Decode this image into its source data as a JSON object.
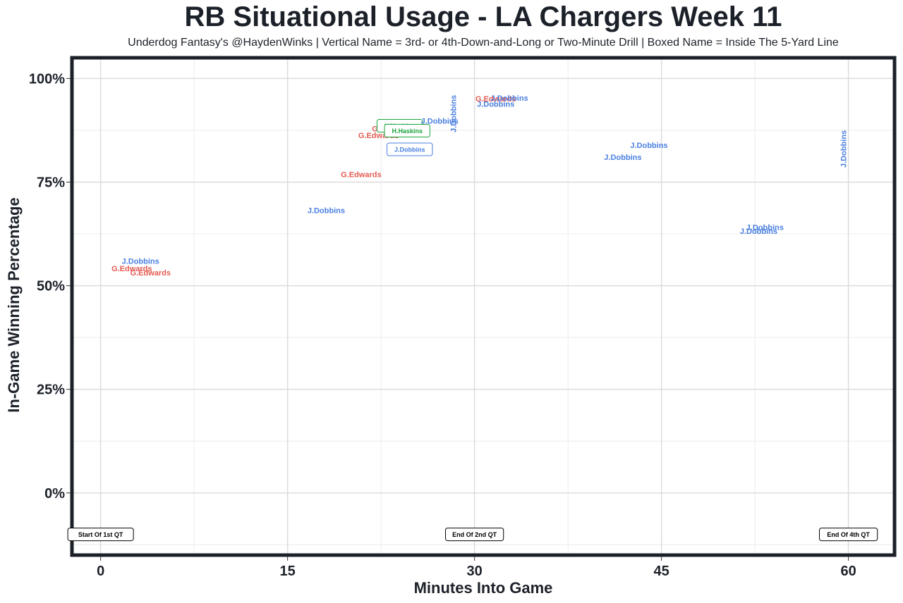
{
  "chart_data": {
    "type": "scatter",
    "title": "RB Situational Usage - LA Chargers Week 11",
    "subtitle": "Underdog Fantasy's @HaydenWinks | Vertical Name = 3rd- or 4th-Down-and-Long or Two-Minute Drill | Boxed Name = Inside The 5-Yard Line",
    "xlabel": "Minutes Into Game",
    "ylabel": "In-Game Winning Percentage",
    "xlim": [
      -2.3,
      63.7
    ],
    "ylim": [
      -15,
      105
    ],
    "x_ticks": [
      {
        "value": 0,
        "label": "0"
      },
      {
        "value": 15,
        "label": "15"
      },
      {
        "value": 30,
        "label": "30"
      },
      {
        "value": 45,
        "label": "45"
      },
      {
        "value": 60,
        "label": "60"
      }
    ],
    "y_ticks": [
      {
        "value": 0,
        "label": "0%"
      },
      {
        "value": 25,
        "label": "25%"
      },
      {
        "value": 50,
        "label": "50%"
      },
      {
        "value": 75,
        "label": "75%"
      },
      {
        "value": 100,
        "label": "100%"
      }
    ],
    "grid": true,
    "players": [
      {
        "label": "J.Dobbins",
        "color": "#4a7fe0"
      },
      {
        "label": "G.Edwards",
        "color": "#e35b53"
      },
      {
        "label": "H.Haskins",
        "color": "#1aa33c"
      }
    ],
    "points": [
      {
        "x": 3.2,
        "y": 56.0,
        "label": "J.Dobbins",
        "style": "normal"
      },
      {
        "x": 2.5,
        "y": 54.2,
        "label": "G.Edwards",
        "style": "normal"
      },
      {
        "x": 4.0,
        "y": 53.2,
        "label": "G.Edwards",
        "style": "normal"
      },
      {
        "x": 18.1,
        "y": 68.2,
        "label": "J.Dobbins",
        "style": "normal"
      },
      {
        "x": 20.9,
        "y": 76.9,
        "label": "G.Edwards",
        "style": "normal"
      },
      {
        "x": 22.3,
        "y": 86.3,
        "label": "G.Edwards",
        "style": "normal"
      },
      {
        "x": 23.4,
        "y": 87.9,
        "label": "G.Edwards",
        "style": "normal"
      },
      {
        "x": 24.0,
        "y": 88.6,
        "label": "H.Haskins",
        "style": "boxed"
      },
      {
        "x": 24.6,
        "y": 87.4,
        "label": "H.Haskins",
        "style": "boxed"
      },
      {
        "x": 24.8,
        "y": 82.9,
        "label": "J.Dobbins",
        "style": "boxed"
      },
      {
        "x": 27.2,
        "y": 89.8,
        "label": "J.Dobbins",
        "style": "normal"
      },
      {
        "x": 28.3,
        "y": 91.5,
        "label": "J.Dobbins",
        "style": "vertical"
      },
      {
        "x": 31.7,
        "y": 93.9,
        "label": "J.Dobbins",
        "style": "normal"
      },
      {
        "x": 31.7,
        "y": 95.1,
        "label": "G.Edwards",
        "style": "normal"
      },
      {
        "x": 32.8,
        "y": 95.3,
        "label": "J.Dobbins",
        "style": "normal"
      },
      {
        "x": 41.9,
        "y": 81.0,
        "label": "J.Dobbins",
        "style": "normal"
      },
      {
        "x": 44.0,
        "y": 83.9,
        "label": "J.Dobbins",
        "style": "normal"
      },
      {
        "x": 53.3,
        "y": 64.1,
        "label": "J.Dobbins",
        "style": "normal"
      },
      {
        "x": 52.8,
        "y": 63.2,
        "label": "J.Dobbins",
        "style": "normal"
      },
      {
        "x": 59.6,
        "y": 83.0,
        "label": "J.Dobbins",
        "style": "vertical"
      }
    ],
    "annotations": [
      {
        "x": 0,
        "y": -10,
        "label": "Start Of 1st QT"
      },
      {
        "x": 30,
        "y": -10,
        "label": "End Of 2nd QT"
      },
      {
        "x": 60,
        "y": -10,
        "label": "End Of 4th QT"
      }
    ]
  }
}
